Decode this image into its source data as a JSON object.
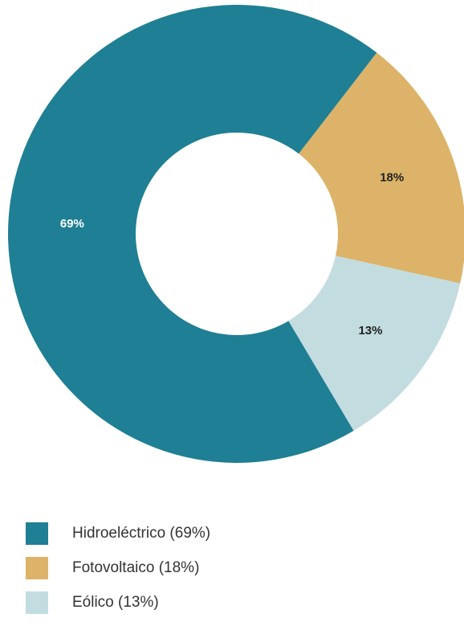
{
  "chart_data": {
    "type": "pie",
    "variant": "donut",
    "title": "",
    "slices": [
      {
        "label": "Hidroeléctrico (69%)",
        "value": 69,
        "display": "69%",
        "color": "#1f7f94",
        "label_color": "#ffffff"
      },
      {
        "label": "Fotovoltaico (18%)",
        "value": 18,
        "display": "18%",
        "color": "#dcb368",
        "label_color": "#222222"
      },
      {
        "label": "Eólico (13%)",
        "value": 13,
        "display": "13%",
        "color": "#c3dce0",
        "label_color": "#222222"
      }
    ],
    "legend_position": "bottom-left"
  }
}
